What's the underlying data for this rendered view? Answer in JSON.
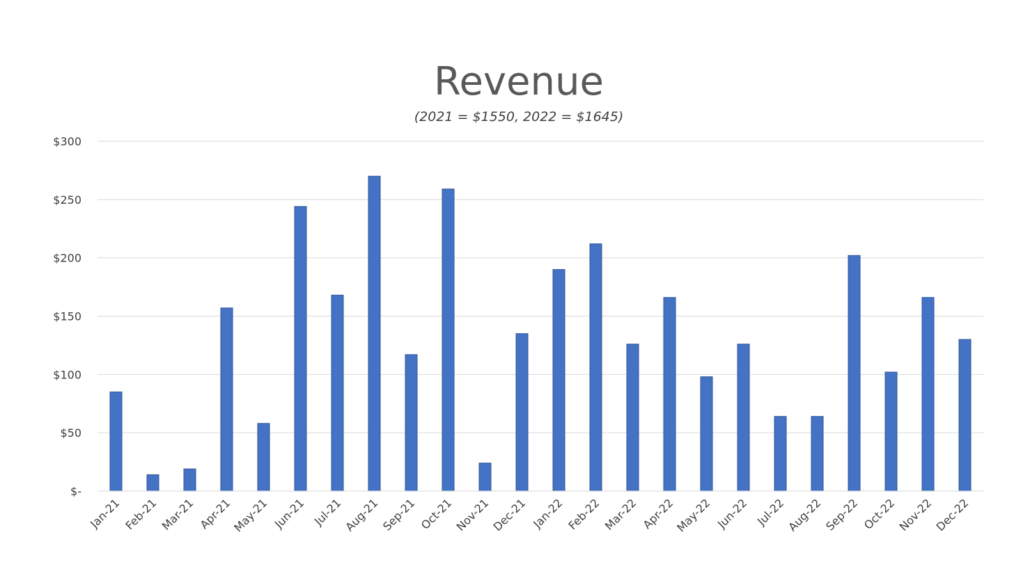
{
  "chart_data": {
    "type": "bar",
    "title": "Revenue",
    "subtitle": "(2021 = $1550, 2022 = $1645)",
    "xlabel": "",
    "ylabel": "",
    "ylim": [
      0,
      300
    ],
    "y_ticks": [
      0,
      50,
      100,
      150,
      200,
      250,
      300
    ],
    "y_tick_labels": [
      "$-",
      "$50",
      "$100",
      "$150",
      "$200",
      "$250",
      "$300"
    ],
    "grid": true,
    "legend": "none",
    "bar_color": "#4472c4",
    "categories": [
      "Jan-21",
      "Feb-21",
      "Mar-21",
      "Apr-21",
      "May-21",
      "Jun-21",
      "Jul-21",
      "Aug-21",
      "Sep-21",
      "Oct-21",
      "Nov-21",
      "Dec-21",
      "Jan-22",
      "Feb-22",
      "Mar-22",
      "Apr-22",
      "May-22",
      "Jun-22",
      "Jul-22",
      "Aug-22",
      "Sep-22",
      "Oct-22",
      "Nov-22",
      "Dec-22"
    ],
    "values": [
      85,
      14,
      19,
      157,
      58,
      244,
      168,
      270,
      117,
      259,
      24,
      135,
      190,
      212,
      126,
      166,
      98,
      126,
      64,
      64,
      202,
      102,
      166,
      130
    ]
  }
}
